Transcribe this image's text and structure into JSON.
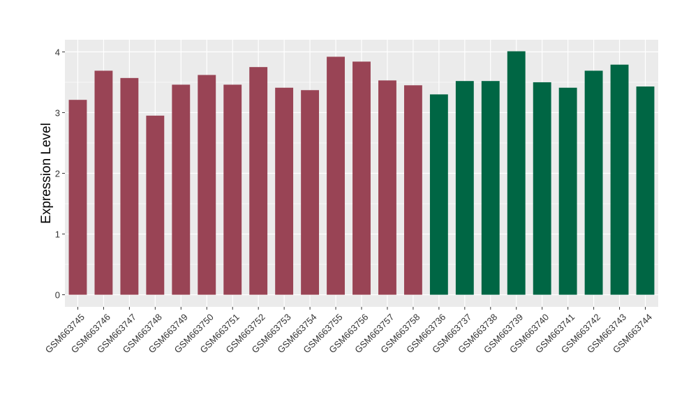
{
  "chart_data": {
    "type": "bar",
    "title": "",
    "xlabel": "",
    "ylabel": "Expression Level",
    "ylim": [
      -0.2,
      4.2
    ],
    "yticks": [
      0,
      1,
      2,
      3,
      4
    ],
    "grid": true,
    "background_color": "#EBEBEB",
    "categories": [
      "GSM663745",
      "GSM663746",
      "GSM663747",
      "GSM663748",
      "GSM663749",
      "GSM663750",
      "GSM663751",
      "GSM663752",
      "GSM663753",
      "GSM663754",
      "GSM663755",
      "GSM663756",
      "GSM663757",
      "GSM663758",
      "GSM663736",
      "GSM663737",
      "GSM663738",
      "GSM663739",
      "GSM663740",
      "GSM663741",
      "GSM663742",
      "GSM663743",
      "GSM663744"
    ],
    "values": [
      3.21,
      3.69,
      3.57,
      2.95,
      3.46,
      3.62,
      3.46,
      3.75,
      3.41,
      3.37,
      3.92,
      3.84,
      3.53,
      3.45,
      3.3,
      3.52,
      3.52,
      4.01,
      3.5,
      3.41,
      3.69,
      3.79,
      3.43
    ],
    "bar_colors": [
      "#994455",
      "#994455",
      "#994455",
      "#994455",
      "#994455",
      "#994455",
      "#994455",
      "#994455",
      "#994455",
      "#994455",
      "#994455",
      "#994455",
      "#994455",
      "#994455",
      "#006644",
      "#006644",
      "#006644",
      "#006644",
      "#006644",
      "#006644",
      "#006644",
      "#006644",
      "#006644"
    ]
  }
}
